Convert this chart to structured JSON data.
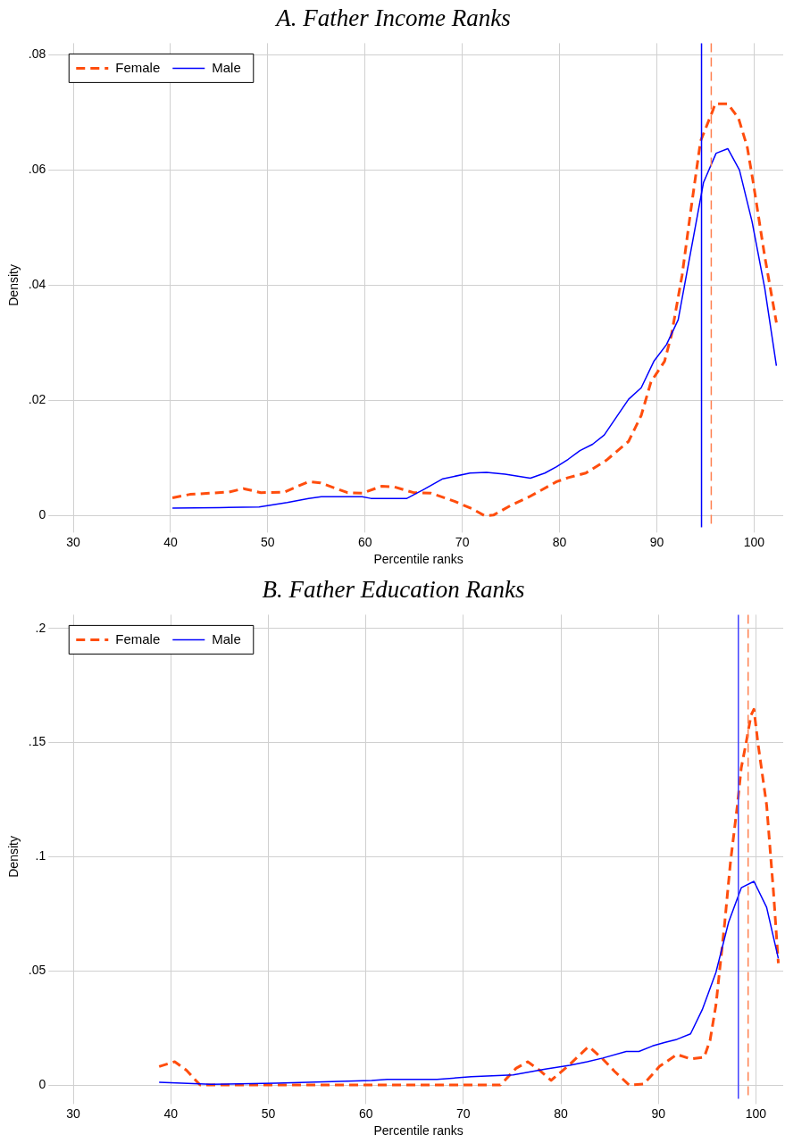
{
  "chart_data": [
    {
      "type": "line",
      "title": "A. Father Income Ranks",
      "xlabel": "Percentile ranks",
      "ylabel": "Density",
      "xlim": [
        28,
        103
      ],
      "xticks": [
        30,
        40,
        50,
        60,
        70,
        80,
        90,
        100
      ],
      "ylim": [
        -0.002,
        0.082
      ],
      "yticks": [
        0,
        {
          "value": 0.02,
          "label": ".02"
        },
        {
          "value": 0.04,
          "label": ".04"
        },
        {
          "value": 0.06,
          "label": ".06"
        },
        {
          "value": 0.08,
          "label": ".08"
        }
      ],
      "grid": true,
      "legend": "top left",
      "marker": "none",
      "series": [
        {
          "name": "Female",
          "color": "#ff4d0d",
          "line_style": "dashed",
          "x": [
            40.2,
            42,
            44,
            46,
            47.5,
            49.3,
            51.7,
            54.2,
            55.4,
            58.2,
            59.7,
            61.7,
            63,
            65,
            66.8,
            69.2,
            71,
            72.3,
            73.2,
            75,
            76.9,
            79.7,
            80.9,
            82.7,
            84.8,
            87.1,
            88.4,
            89.4,
            90.8,
            91.5,
            92.6,
            93.5,
            94.5,
            95.8,
            96,
            97.3,
            98.4,
            99.3,
            99.9,
            101.1,
            102.3
          ],
          "values": [
            0.0031,
            0.0037,
            0.0039,
            0.0041,
            0.0047,
            0.004,
            0.0041,
            0.0059,
            0.0057,
            0.004,
            0.0039,
            0.0051,
            0.005,
            0.004,
            0.0039,
            0.0025,
            0.0012,
            0.0,
            0.0001,
            0.0018,
            0.0033,
            0.0059,
            0.0066,
            0.0074,
            0.0096,
            0.0129,
            0.0174,
            0.0232,
            0.0268,
            0.0313,
            0.0417,
            0.053,
            0.065,
            0.0705,
            0.0715,
            0.0715,
            0.069,
            0.064,
            0.058,
            0.045,
            0.0335
          ]
        },
        {
          "name": "Male",
          "color": "#0000ff",
          "line_style": "solid",
          "x": [
            40.2,
            45,
            49.1,
            52,
            54.2,
            55.5,
            59.7,
            60.6,
            64.3,
            66,
            68,
            70.8,
            72.5,
            74.4,
            77,
            78.5,
            79.7,
            80.9,
            82.1,
            83.4,
            84.6,
            85.8,
            87.1,
            88.4,
            89.7,
            91,
            92.2,
            94.8,
            96.1,
            97.3,
            98.5,
            99.8,
            101.1,
            102.3
          ],
          "values": [
            0.0013,
            0.0014,
            0.0015,
            0.0023,
            0.003,
            0.0033,
            0.0033,
            0.003,
            0.003,
            0.0045,
            0.0064,
            0.0074,
            0.0075,
            0.0072,
            0.0065,
            0.0074,
            0.0085,
            0.0098,
            0.0113,
            0.0124,
            0.014,
            0.017,
            0.0202,
            0.0222,
            0.0268,
            0.0297,
            0.034,
            0.0578,
            0.0629,
            0.0637,
            0.06,
            0.051,
            0.0395,
            0.026
          ]
        }
      ],
      "ref_lines": [
        {
          "axis": "x",
          "value": 94.6,
          "color": "#0000ff",
          "line_style": "solid"
        },
        {
          "axis": "x",
          "value": 95.6,
          "color": "#ff8050",
          "line_style": "dashed"
        }
      ]
    },
    {
      "type": "line",
      "title": "B. Father Education Ranks",
      "xlabel": "Percentile ranks",
      "ylabel": "Density",
      "xlim": [
        28,
        102.8
      ],
      "xticks": [
        30,
        40,
        50,
        60,
        70,
        80,
        90,
        100
      ],
      "ylim": [
        -0.006,
        0.206
      ],
      "yticks": [
        0,
        {
          "value": 0.05,
          "label": ".05"
        },
        {
          "value": 0.1,
          "label": ".1"
        },
        {
          "value": 0.15,
          "label": ".15"
        },
        {
          "value": 0.2,
          "label": ".2"
        }
      ],
      "grid": true,
      "legend": "top left",
      "marker": "none",
      "series": [
        {
          "name": "Female",
          "color": "#ff4d0d",
          "line_style": "dashed",
          "x": [
            38.8,
            40.4,
            41.6,
            43,
            50,
            60,
            70,
            73.8,
            75.4,
            76.6,
            77.8,
            79,
            80.9,
            82.7,
            82.9,
            84.3,
            85.5,
            87,
            88.5,
            90.1,
            91.9,
            93.3,
            94.7,
            95.3,
            95.9,
            96.3,
            96.8,
            97.4,
            98.1,
            98.5,
            99,
            99.5,
            99.8,
            100.2,
            101.1,
            101.8,
            102.3
          ],
          "values": [
            0.0081,
            0.0102,
            0.0065,
            0,
            0,
            0,
            0,
            0,
            0.0073,
            0.0102,
            0.0065,
            0.002,
            0.009,
            0.0163,
            0.0167,
            0.0114,
            0.006,
            0,
            0.0004,
            0.0081,
            0.0134,
            0.0114,
            0.0122,
            0.0196,
            0.035,
            0.051,
            0.071,
            0.098,
            0.1226,
            0.139,
            0.15,
            0.162,
            0.1646,
            0.15,
            0.1226,
            0.0847,
            0.0534
          ]
        },
        {
          "name": "Male",
          "color": "#0000ff",
          "line_style": "solid",
          "x": [
            38.8,
            44.1,
            50.8,
            60.6,
            62.2,
            67.3,
            70.8,
            75.1,
            78.4,
            80.9,
            82.7,
            84.3,
            86.7,
            88,
            89.4,
            90.7,
            91.9,
            93.3,
            94.5,
            95.9,
            97.2,
            98.5,
            99.8,
            101.1,
            102.3
          ],
          "values": [
            0.0012,
            0.0003,
            0.0008,
            0.002,
            0.0025,
            0.0025,
            0.0036,
            0.0044,
            0.007,
            0.0086,
            0.0102,
            0.0118,
            0.0147,
            0.0147,
            0.0171,
            0.0187,
            0.02,
            0.0224,
            0.033,
            0.0493,
            0.0713,
            0.0864,
            0.0892,
            0.0778,
            0.0554
          ]
        }
      ],
      "ref_lines": [
        {
          "axis": "x",
          "value": 98.2,
          "color": "#4040ff",
          "line_style": "solid"
        },
        {
          "axis": "x",
          "value": 99.2,
          "color": "#ff8050",
          "line_style": "dashed"
        }
      ]
    }
  ]
}
